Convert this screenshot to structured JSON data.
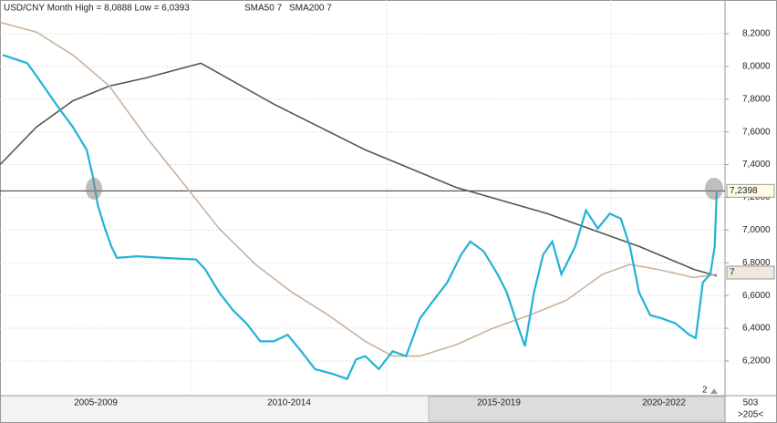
{
  "chart_data": {
    "type": "line",
    "title": "USD/CNY Month High = 8,0888 Low = 6,0393",
    "ylim": [
      5.988,
      8.406
    ],
    "xlim": [
      2004.6,
      2022.9
    ],
    "yticks": [
      {
        "value": 6.2,
        "label": "6,2000"
      },
      {
        "value": 6.4,
        "label": "6,4000"
      },
      {
        "value": 6.6,
        "label": "6,6000"
      },
      {
        "value": 6.8,
        "label": "6,8000"
      },
      {
        "value": 7.0,
        "label": "7,0000"
      },
      {
        "value": 7.2,
        "label": "7,2000"
      },
      {
        "value": 7.4,
        "label": "7,4000"
      },
      {
        "value": 7.6,
        "label": "7,6000"
      },
      {
        "value": 7.8,
        "label": "7,8000"
      },
      {
        "value": 8.0,
        "label": "8,0000"
      },
      {
        "value": 8.2,
        "label": "8,2000"
      }
    ],
    "grid": true,
    "period_labels": [
      "2005-2009",
      "2010-2014",
      "2015-2019",
      "2020-2022"
    ],
    "hline": {
      "value": 7.2398,
      "label": "7,2398"
    },
    "annotations": [
      "7",
      "2",
      "503",
      ">205<"
    ],
    "series": [
      {
        "color": "#22b2d4",
        "x": [
          2004.67,
          2005.29,
          2005.64,
          2006.1,
          2006.44,
          2006.79,
          2006.95,
          2007.07,
          2007.25,
          2007.41,
          2007.55,
          2008.06,
          2008.75,
          2009.55,
          2009.78,
          2010.13,
          2010.48,
          2010.82,
          2011.17,
          2011.51,
          2011.86,
          2012.2,
          2012.55,
          2013.01,
          2013.36,
          2013.59,
          2013.82,
          2014.16,
          2014.51,
          2014.85,
          2015.2,
          2015.54,
          2015.89,
          2016.24,
          2016.47,
          2016.81,
          2017.16,
          2017.39,
          2017.69,
          2017.85,
          2018.08,
          2018.31,
          2018.54,
          2018.77,
          2019.12,
          2019.39,
          2019.69,
          2019.99,
          2020.27,
          2020.5,
          2020.73,
          2021.01,
          2021.31,
          2021.65,
          2022.0,
          2022.16,
          2022.34,
          2022.53,
          2022.64,
          2022.69
        ],
        "values": [
          8.07,
          8.02,
          7.9,
          7.74,
          7.63,
          7.49,
          7.32,
          7.15,
          7.01,
          6.9,
          6.83,
          6.84,
          6.83,
          6.82,
          6.76,
          6.62,
          6.51,
          6.43,
          6.32,
          6.32,
          6.36,
          6.26,
          6.15,
          6.12,
          6.09,
          6.21,
          6.23,
          6.15,
          6.26,
          6.23,
          6.46,
          6.57,
          6.68,
          6.85,
          6.93,
          6.87,
          6.73,
          6.62,
          6.4,
          6.29,
          6.62,
          6.85,
          6.93,
          6.73,
          6.9,
          7.12,
          7.01,
          7.1,
          7.07,
          6.9,
          6.62,
          6.48,
          6.46,
          6.43,
          6.36,
          6.34,
          6.68,
          6.73,
          6.9,
          7.24
        ]
      },
      {
        "name": "SMA50 7",
        "color": "#c9b29c",
        "x": [
          2004.6,
          2005.52,
          2006.44,
          2007.36,
          2008.29,
          2009.21,
          2010.13,
          2011.05,
          2011.97,
          2012.89,
          2013.82,
          2014.51,
          2015.2,
          2016.12,
          2017.04,
          2017.96,
          2018.89,
          2019.81,
          2020.5,
          2021.19,
          2022.11,
          2022.69
        ],
        "values": [
          8.27,
          8.21,
          8.07,
          7.88,
          7.57,
          7.29,
          7.01,
          6.79,
          6.62,
          6.48,
          6.32,
          6.23,
          6.23,
          6.3,
          6.4,
          6.48,
          6.57,
          6.73,
          6.79,
          6.76,
          6.71,
          6.73
        ]
      },
      {
        "name": "SMA200 7",
        "color": "#555555",
        "x": [
          2004.6,
          2005.52,
          2006.44,
          2007.36,
          2008.29,
          2009.67,
          2011.51,
          2013.82,
          2016.12,
          2018.42,
          2020.73,
          2022.11,
          2022.69
        ],
        "values": [
          7.4,
          7.63,
          7.79,
          7.88,
          7.93,
          8.02,
          7.77,
          7.49,
          7.26,
          7.1,
          6.9,
          6.76,
          6.72
        ]
      }
    ]
  }
}
